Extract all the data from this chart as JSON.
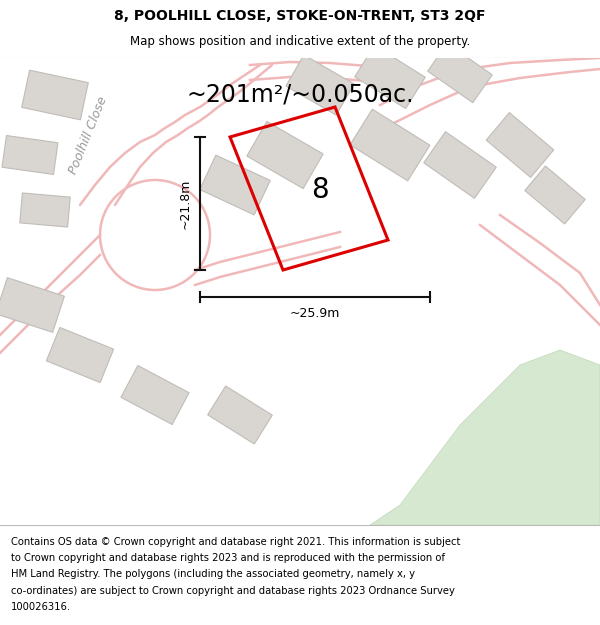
{
  "title_line1": "8, POOLHILL CLOSE, STOKE-ON-TRENT, ST3 2QF",
  "title_line2": "Map shows position and indicative extent of the property.",
  "area_label": "~201m²/~0.050ac.",
  "property_number": "8",
  "dim_vertical": "~21.8m",
  "dim_horizontal": "~25.9m",
  "road_label": "Poolhill Close",
  "footer_lines": [
    "Contains OS data © Crown copyright and database right 2021. This information is subject",
    "to Crown copyright and database rights 2023 and is reproduced with the permission of",
    "HM Land Registry. The polygons (including the associated geometry, namely x, y",
    "co-ordinates) are subject to Crown copyright and database rights 2023 Ordnance Survey",
    "100026316."
  ],
  "map_bg": "#efede9",
  "footer_bg": "#ffffff",
  "red_plot_color": "#dd0000",
  "road_color": "#f0b8b8",
  "building_fill": "#d9d6d1",
  "building_edge": "#c0bdb8",
  "green_fill": "#d6e8d0",
  "green_edge": "#c0d8ba",
  "dim_line_color": "#111111",
  "road_label_color": "#999999"
}
